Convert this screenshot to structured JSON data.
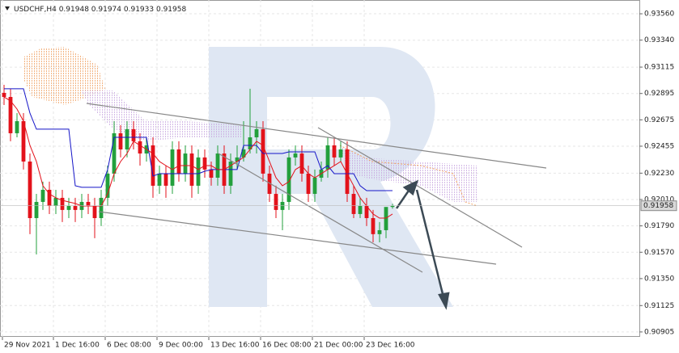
{
  "chart_data": {
    "type": "candlestick",
    "symbol": "USDCHF,H4",
    "header_ohlc": [
      0.91948,
      0.91974,
      0.91933,
      0.91958
    ],
    "candles": {
      "open": [
        0.929,
        0.92866,
        0.92563,
        0.92664,
        0.92327,
        0.91855,
        0.9199,
        0.92091,
        0.91956,
        0.92024,
        0.91923,
        0.91956,
        0.91923,
        0.9199,
        0.91956,
        0.91855,
        0.92024,
        0.92226,
        0.92563,
        0.92428,
        0.92597,
        0.92496,
        0.92394,
        0.92462,
        0.92125,
        0.92226,
        0.92125,
        0.92428,
        0.92226,
        0.92394,
        0.92125,
        0.92361,
        0.9226,
        0.92192,
        0.92394,
        0.92125,
        0.92327,
        0.92361,
        0.92428,
        0.92529,
        0.92597,
        0.92226,
        0.92057,
        0.91923,
        0.9199,
        0.92361,
        0.92394,
        0.92226,
        0.92057,
        0.92192,
        0.9226,
        0.92462,
        0.92361,
        0.92428,
        0.92057,
        0.91889,
        0.91956,
        0.91855,
        0.91721,
        0.91754,
        0.91948
      ],
      "high": [
        0.92967,
        0.92934,
        0.92731,
        0.92731,
        0.92394,
        0.92057,
        0.92159,
        0.92159,
        0.92091,
        0.92091,
        0.92024,
        0.92024,
        0.92057,
        0.92057,
        0.92024,
        0.92091,
        0.92293,
        0.92664,
        0.9263,
        0.92664,
        0.92664,
        0.92563,
        0.92529,
        0.92529,
        0.92293,
        0.92293,
        0.92496,
        0.92496,
        0.92462,
        0.92462,
        0.92428,
        0.92428,
        0.92327,
        0.92462,
        0.92462,
        0.92394,
        0.92462,
        0.92664,
        0.92934,
        0.92664,
        0.92664,
        0.92293,
        0.92125,
        0.92057,
        0.92428,
        0.92462,
        0.92462,
        0.92293,
        0.9226,
        0.92327,
        0.92529,
        0.92529,
        0.92496,
        0.92496,
        0.92125,
        0.92024,
        0.92024,
        0.91923,
        0.91822,
        0.91923,
        0.91974
      ],
      "low": [
        0.92799,
        0.92496,
        0.92529,
        0.9226,
        0.91721,
        0.91552,
        0.91923,
        0.91889,
        0.91889,
        0.91822,
        0.91855,
        0.91822,
        0.91855,
        0.91889,
        0.91687,
        0.91788,
        0.91956,
        0.92159,
        0.92361,
        0.92361,
        0.92428,
        0.92293,
        0.92327,
        0.92024,
        0.92057,
        0.92024,
        0.92057,
        0.92159,
        0.92159,
        0.92024,
        0.92057,
        0.92192,
        0.92125,
        0.92125,
        0.92057,
        0.92057,
        0.9226,
        0.92327,
        0.92394,
        0.92394,
        0.92159,
        0.9199,
        0.91855,
        0.91754,
        0.91923,
        0.92293,
        0.92159,
        0.9199,
        0.9199,
        0.92159,
        0.92192,
        0.92293,
        0.92327,
        0.9199,
        0.91855,
        0.91855,
        0.91788,
        0.91653,
        0.91653,
        0.91687,
        0.91933
      ],
      "close": [
        0.92866,
        0.92563,
        0.92664,
        0.92327,
        0.91855,
        0.9199,
        0.92091,
        0.91956,
        0.92024,
        0.91923,
        0.91956,
        0.91923,
        0.9199,
        0.91956,
        0.91855,
        0.92024,
        0.92226,
        0.92563,
        0.92428,
        0.92597,
        0.92496,
        0.92394,
        0.92462,
        0.92125,
        0.92226,
        0.92125,
        0.92428,
        0.92226,
        0.92394,
        0.92125,
        0.92361,
        0.9226,
        0.92192,
        0.92394,
        0.92125,
        0.92327,
        0.92361,
        0.92428,
        0.92529,
        0.92597,
        0.92226,
        0.92057,
        0.91923,
        0.9199,
        0.92361,
        0.92394,
        0.92226,
        0.92057,
        0.92192,
        0.9226,
        0.92462,
        0.92361,
        0.92428,
        0.92057,
        0.91889,
        0.91956,
        0.91855,
        0.91721,
        0.91754,
        0.91948,
        0.91958
      ]
    },
    "up_color": "#23a03c",
    "down_color": "#e3121b",
    "lines": [
      {
        "color": "#1515c8",
        "values": [
          0.92934,
          0.92934,
          0.92934,
          0.92934,
          0.92731,
          0.92597,
          0.92597,
          0.92597,
          0.92597,
          0.92597,
          0.92597,
          0.92125,
          0.92112,
          0.92112,
          0.92112,
          0.92112,
          0.9226,
          0.92529,
          0.92529,
          0.92529,
          0.92529,
          0.92529,
          0.92529,
          0.92206,
          0.92226,
          0.92226,
          0.92226,
          0.92226,
          0.92226,
          0.92226,
          0.92226,
          0.92246,
          0.9226,
          0.9226,
          0.9226,
          0.9226,
          0.9226,
          0.92462,
          0.92462,
          0.92462,
          0.92394,
          0.92394,
          0.92394,
          0.92394,
          0.92408,
          0.92408,
          0.92408,
          0.92408,
          0.92408,
          0.9226,
          0.92293,
          0.92226,
          0.92226,
          0.92226,
          0.92226,
          0.92125,
          0.92084,
          0.92084,
          0.92084,
          0.92084,
          0.92084
        ]
      },
      {
        "color": "#e3121b",
        "values": [
          0.92866,
          0.92833,
          0.92765,
          0.92664,
          0.92462,
          0.92327,
          0.92125,
          0.92057,
          0.92024,
          0.92003,
          0.9199,
          0.91977,
          0.91956,
          0.91956,
          0.91956,
          0.91956,
          0.92057,
          0.92226,
          0.92327,
          0.92394,
          0.92496,
          0.92462,
          0.92428,
          0.92394,
          0.92327,
          0.92293,
          0.9226,
          0.92293,
          0.92293,
          0.92293,
          0.9226,
          0.92293,
          0.92293,
          0.9226,
          0.9226,
          0.92293,
          0.92327,
          0.92361,
          0.92428,
          0.92496,
          0.92462,
          0.92327,
          0.92192,
          0.92125,
          0.92159,
          0.9226,
          0.92293,
          0.92226,
          0.92192,
          0.92226,
          0.9226,
          0.92293,
          0.92327,
          0.92226,
          0.92125,
          0.92024,
          0.91956,
          0.91889,
          0.91855,
          0.91855,
          0.91889
        ]
      }
    ],
    "xlim": [
      -0.625,
      98.125
    ],
    "xticks": [
      {
        "value": -0.25,
        "label": "29 Nov 2021"
      },
      {
        "value": 7.625,
        "label": "1 Dec 16:00"
      },
      {
        "value": 15.625,
        "label": "6 Dec 08:00"
      },
      {
        "value": 23.625,
        "label": "9 Dec 00:00"
      },
      {
        "value": 31.625,
        "label": "13 Dec 16:00"
      },
      {
        "value": 39.625,
        "label": "16 Dec 08:00"
      },
      {
        "value": 47.625,
        "label": "21 Dec 00:00"
      },
      {
        "value": 55.625,
        "label": "23 Dec 16:00"
      }
    ],
    "ylim": [
      0.90864,
      0.93675
    ],
    "yticks": [
      {
        "value": 0.9356,
        "label": "0.93560"
      },
      {
        "value": 0.9334,
        "label": "0.93340"
      },
      0.93115,
      0.92895,
      0.92675,
      0.92455,
      {
        "value": 0.9223,
        "label": "0.92230"
      },
      {
        "value": 0.9201,
        "label": "0.92010"
      },
      {
        "value": 0.9179,
        "label": "0.91790"
      },
      {
        "value": 0.9157,
        "label": "0.91570"
      },
      {
        "value": 0.9135,
        "label": "0.91350"
      },
      0.91125,
      0.90905
    ],
    "grid": true
  }
}
